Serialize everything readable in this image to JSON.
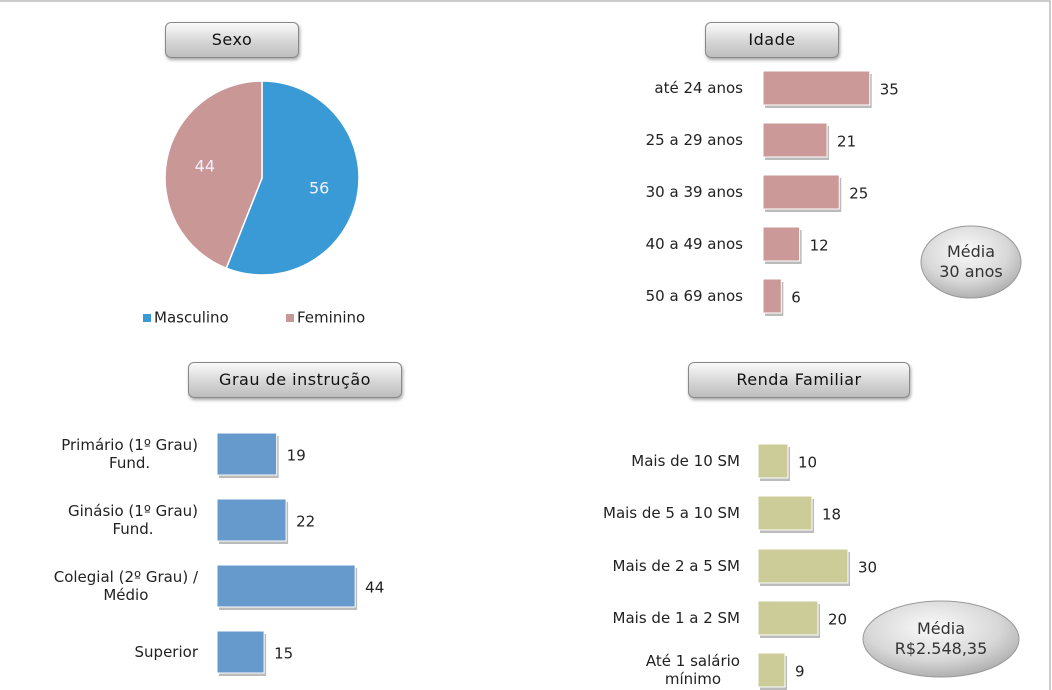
{
  "chart_data": [
    {
      "type": "pie",
      "title": "Sexo",
      "categories": [
        "Masculino",
        "Feminino"
      ],
      "values": [
        56,
        44
      ],
      "colors": [
        "#3a9ad6",
        "#c99796"
      ],
      "legend": "bottom"
    },
    {
      "type": "barh",
      "title": "Idade",
      "categories": [
        "até 24 anos",
        "25 a 29 anos",
        "30 a 39 anos",
        "40 a 49 anos",
        "50 a 69 anos"
      ],
      "values": [
        35,
        21,
        25,
        12,
        6
      ],
      "color": "#cc9999",
      "annotation": "Média\n30 anos"
    },
    {
      "type": "barh",
      "title": "Grau de instrução",
      "categories": [
        "Primário (1º Grau)\nFund.",
        "Ginásio (1º Grau)\nFund.",
        "Colegial (2º Grau) /\nMédio",
        "Superior"
      ],
      "values": [
        19,
        22,
        44,
        15
      ],
      "color": "#6699cc"
    },
    {
      "type": "barh",
      "title": "Renda Familiar",
      "categories": [
        "Mais de 10 SM",
        "Mais de 5 a 10 SM",
        "Mais de 2 a 5 SM",
        "Mais de 1 a 2 SM",
        "Até 1 salário\nmínimo"
      ],
      "values": [
        10,
        18,
        30,
        20,
        9
      ],
      "color": "#cccc99",
      "annotation": "Média\nR$2.548,35"
    }
  ]
}
